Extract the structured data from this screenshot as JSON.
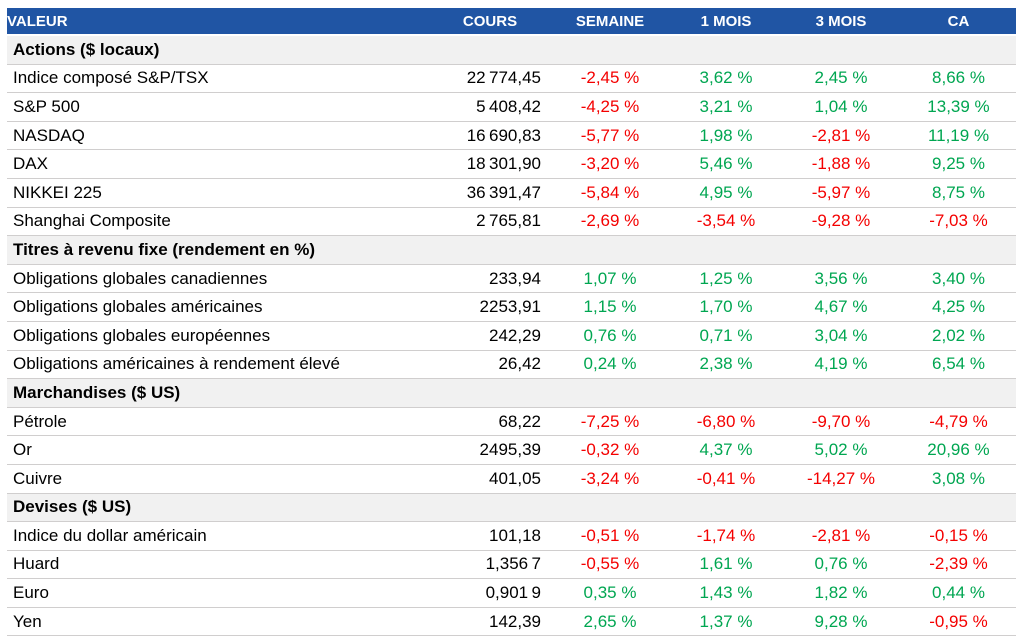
{
  "colors": {
    "header_bg": "#2055a4",
    "header_text": "#ffffff",
    "section_bg": "#f1f1f1",
    "row_border": "#d0cece",
    "text": "#000000",
    "positive": "#00a651",
    "negative": "#f40000"
  },
  "table": {
    "columns": [
      {
        "label": "VALEUR",
        "align": "left"
      },
      {
        "label": "COURS",
        "align": "center"
      },
      {
        "label": "SEMAINE",
        "align": "center"
      },
      {
        "label": "1 MOIS",
        "align": "center"
      },
      {
        "label": "3 MOIS",
        "align": "center"
      },
      {
        "label": "CA",
        "align": "center"
      }
    ],
    "sections": [
      {
        "label": "Actions ($ locaux)",
        "rows": [
          {
            "cells": [
              "Indice composé S&P/TSX",
              "22 774,45",
              "-2,45 %",
              "3,62 %",
              "2,45 %",
              "8,66 %"
            ]
          },
          {
            "cells": [
              "S&P 500",
              "5 408,42",
              "-4,25 %",
              "3,21 %",
              "1,04 %",
              "13,39 %"
            ]
          },
          {
            "cells": [
              "NASDAQ",
              "16 690,83",
              "-5,77 %",
              "1,98 %",
              "-2,81 %",
              "11,19 %"
            ]
          },
          {
            "cells": [
              "DAX",
              "18 301,90",
              "-3,20 %",
              "5,46 %",
              "-1,88 %",
              "9,25 %"
            ]
          },
          {
            "cells": [
              "NIKKEI 225",
              "36 391,47",
              "-5,84 %",
              "4,95 %",
              "-5,97 %",
              "8,75 %"
            ]
          },
          {
            "cells": [
              "Shanghai Composite",
              "2 765,81",
              "-2,69 %",
              "-3,54 %",
              "-9,28 %",
              "-7,03 %"
            ]
          }
        ]
      },
      {
        "label": "Titres à revenu fixe (rendement en %)",
        "rows": [
          {
            "cells": [
              "Obligations globales canadiennes",
              "233,94",
              "1,07 %",
              "1,25 %",
              "3,56 %",
              "3,40 %"
            ]
          },
          {
            "cells": [
              "Obligations globales américaines",
              "2253,91",
              "1,15 %",
              "1,70 %",
              "4,67 %",
              "4,25 %"
            ]
          },
          {
            "cells": [
              "Obligations globales européennes",
              "242,29",
              "0,76 %",
              "0,71 %",
              "3,04 %",
              "2,02 %"
            ]
          },
          {
            "cells": [
              "Obligations américaines à rendement élevé",
              "26,42",
              "0,24 %",
              "2,38 %",
              "4,19 %",
              "6,54 %"
            ]
          }
        ]
      },
      {
        "label": "Marchandises ($ US)",
        "rows": [
          {
            "cells": [
              "Pétrole",
              "68,22",
              "-7,25 %",
              "-6,80 %",
              "-9,70 %",
              "-4,79 %"
            ]
          },
          {
            "cells": [
              "Or",
              "2495,39",
              "-0,32 %",
              "4,37 %",
              "5,02 %",
              "20,96 %"
            ]
          },
          {
            "cells": [
              "Cuivre",
              "401,05",
              "-3,24 %",
              "-0,41 %",
              "-14,27 %",
              "3,08 %"
            ]
          }
        ]
      },
      {
        "label": "Devises ($ US)",
        "rows": [
          {
            "cells": [
              "Indice du dollar américain",
              "101,18",
              "-0,51 %",
              "-1,74 %",
              "-2,81 %",
              "-0,15 %"
            ]
          },
          {
            "cells": [
              "Huard",
              "1,356 7",
              "-0,55 %",
              "1,61 %",
              "0,76 %",
              "-2,39 %"
            ]
          },
          {
            "cells": [
              "Euro",
              "0,901 9",
              "0,35 %",
              "1,43 %",
              "1,82 %",
              "0,44 %"
            ]
          },
          {
            "cells": [
              "Yen",
              "142,39",
              "2,65 %",
              "1,37 %",
              "9,28 %",
              "-0,95 %"
            ]
          }
        ]
      }
    ]
  }
}
